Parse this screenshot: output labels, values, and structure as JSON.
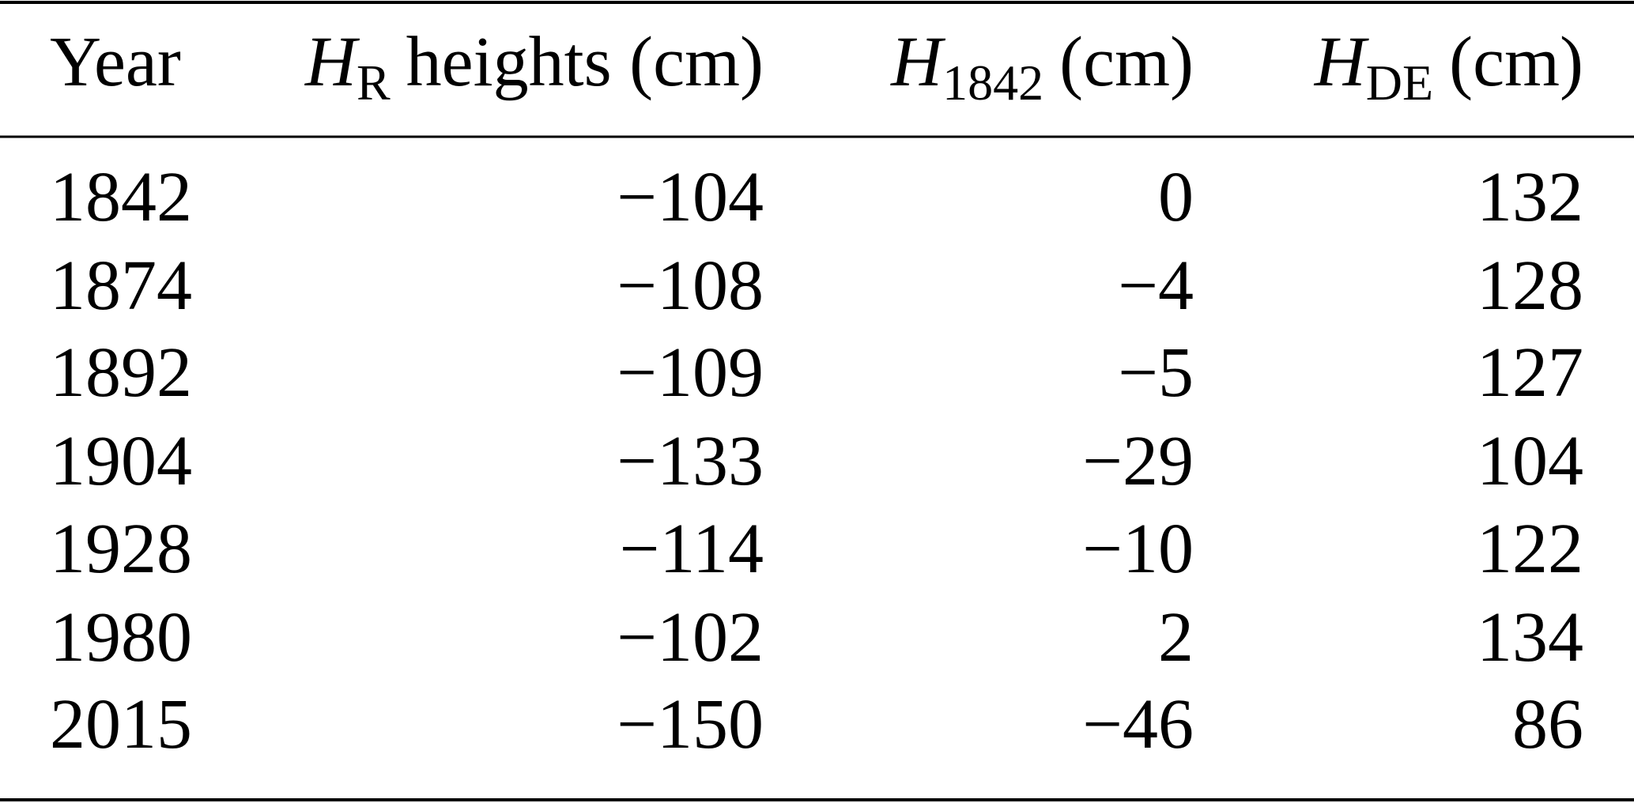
{
  "table": {
    "header": [
      {
        "text": "Year"
      },
      {
        "symbol": "H",
        "subscript": "R",
        "text": "heights (cm)"
      },
      {
        "symbol": "H",
        "subscript": "1842",
        "text": "(cm)"
      },
      {
        "symbol": "H",
        "subscript": "DE",
        "text": "(cm)"
      }
    ],
    "rows": [
      [
        "1842",
        "−104",
        "0",
        "132"
      ],
      [
        "1874",
        "−108",
        "−4",
        "128"
      ],
      [
        "1892",
        "−109",
        "−5",
        "127"
      ],
      [
        "1904",
        "−133",
        "−29",
        "104"
      ],
      [
        "1928",
        "−114",
        "−10",
        "122"
      ],
      [
        "1980",
        "−102",
        "2",
        "134"
      ],
      [
        "2015",
        "−150",
        "−46",
        "86"
      ]
    ]
  }
}
